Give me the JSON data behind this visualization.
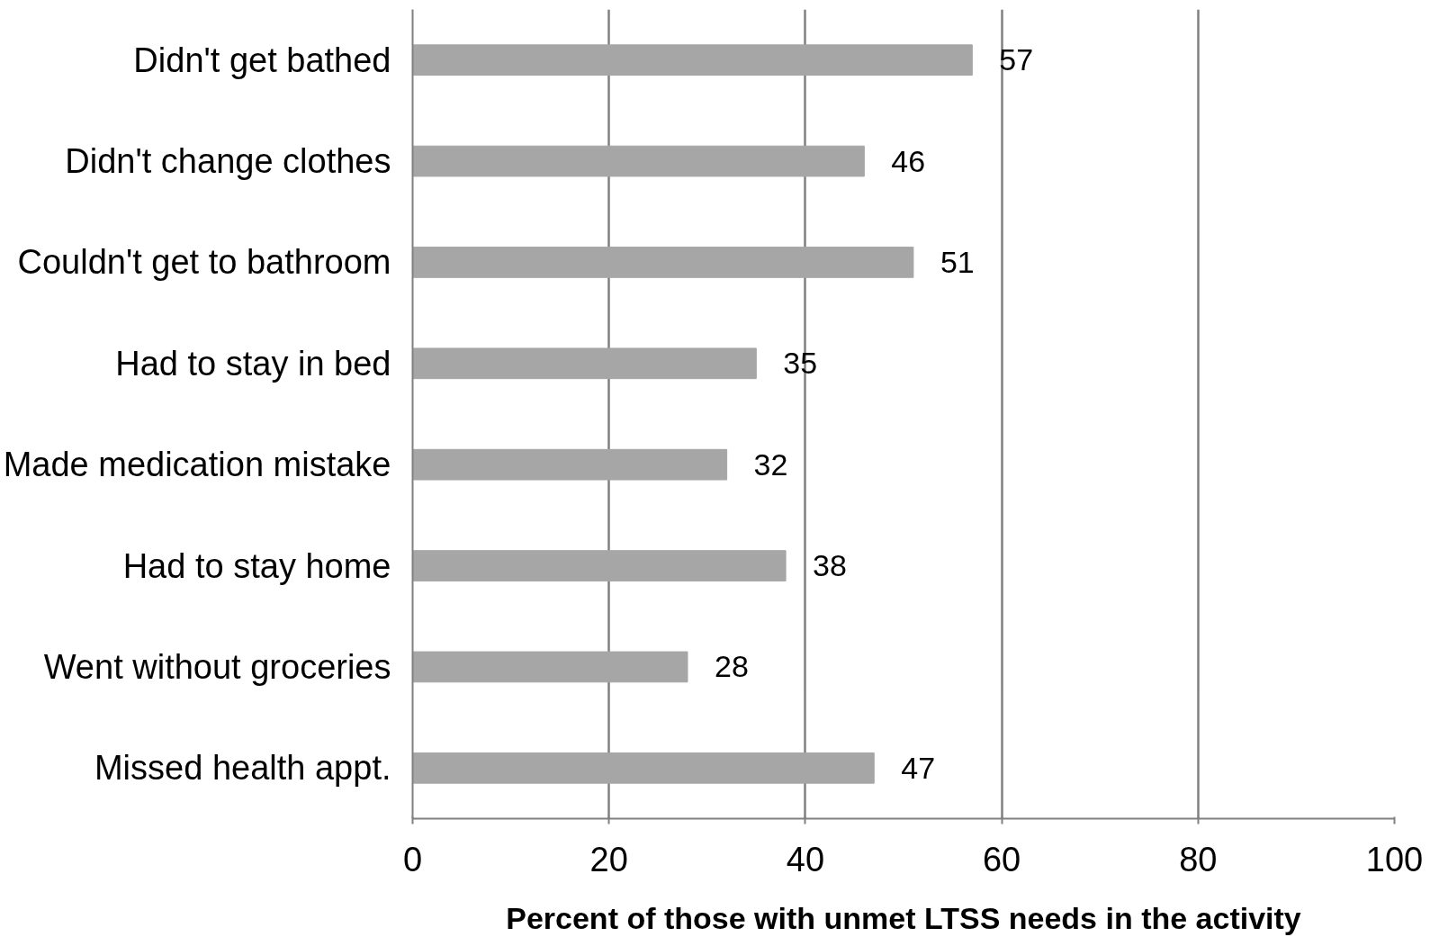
{
  "chart_data": {
    "type": "bar",
    "orientation": "horizontal",
    "categories": [
      "Didn't get bathed",
      "Didn't change clothes",
      "Couldn't get to bathroom",
      "Had to stay in bed",
      "Made medication mistake",
      "Had to stay home",
      "Went without groceries",
      "Missed health appt."
    ],
    "values": [
      57,
      46,
      51,
      35,
      32,
      38,
      28,
      47
    ],
    "color": "#a6a6a6",
    "xlim": [
      0,
      100
    ],
    "xticks": [
      0,
      20,
      40,
      60,
      80,
      100
    ],
    "xlabel": "Percent of those with unmet LTSS needs in the activity",
    "grid": "x",
    "data_labels": true
  }
}
